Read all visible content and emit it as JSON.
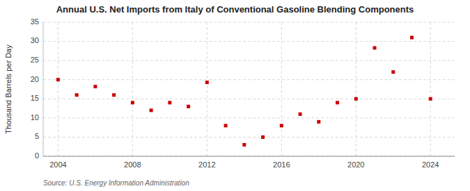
{
  "chart_data": {
    "type": "scatter",
    "title": "Annual U.S. Net Imports from Italy of Conventional Gasoline Blending Components",
    "y_label": "Thousand Barrels per Day",
    "annotations": [
      "Source: U.S. Energy Information Administration"
    ],
    "x": [
      2004,
      2005,
      2006,
      2007,
      2008,
      2009,
      2010,
      2011,
      2012,
      2013,
      2014,
      2015,
      2016,
      2017,
      2018,
      2019,
      2020,
      2021,
      2022,
      2023,
      2024
    ],
    "values": [
      20.0,
      16.0,
      18.2,
      16.0,
      14.0,
      12.0,
      14.0,
      13.0,
      19.3,
      8.0,
      3.0,
      5.0,
      8.0,
      11.0,
      9.0,
      14.0,
      15.0,
      28.3,
      22.0,
      31.0,
      15.0
    ],
    "color": "#cc0000",
    "marker": "square",
    "xlim": [
      2003.2,
      2025.3
    ],
    "ylim": [
      0,
      35
    ],
    "xticks": [
      2004,
      2008,
      2012,
      2016,
      2020,
      2024
    ],
    "yticks": [
      0,
      5,
      10,
      15,
      20,
      25,
      30,
      35
    ],
    "grid": true
  }
}
